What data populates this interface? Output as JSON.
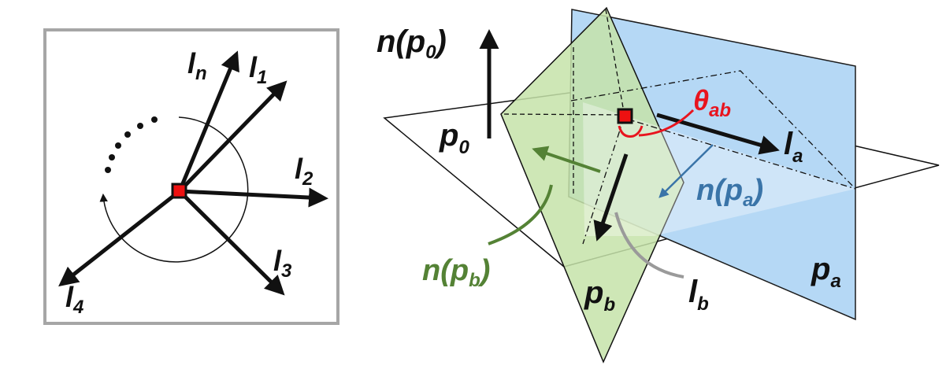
{
  "colors": {
    "frame": "#a6a6a6",
    "ink": "#111111",
    "marker": "#ee1111",
    "angle": "#e8141e",
    "plane_a_fill": "#b5d8f5",
    "plane_a_edge": "#1c1c1c",
    "plane_b_fill": "#c6e3a9",
    "normal_a": "#3a74a8",
    "normal_b": "#548235",
    "lb_leader": "#9a9a9a"
  },
  "left_panel": {
    "lines": [
      {
        "id": "ln",
        "base": "l",
        "sub": "n"
      },
      {
        "id": "l1",
        "base": "l",
        "sub": "1"
      },
      {
        "id": "l2",
        "base": "l",
        "sub": "2"
      },
      {
        "id": "l3",
        "base": "l",
        "sub": "3"
      },
      {
        "id": "l4",
        "base": "l",
        "sub": "4"
      }
    ],
    "ellipsis": "......"
  },
  "right_panel": {
    "normal_p0": {
      "prefix": "n(p",
      "sub": "0",
      "suffix": ")"
    },
    "plane_p0": {
      "base": "p",
      "sub": "0"
    },
    "plane_pa": {
      "base": "p",
      "sub": "a"
    },
    "plane_pb": {
      "base": "p",
      "sub": "b"
    },
    "line_la": {
      "base": "l",
      "sub": "a"
    },
    "line_lb": {
      "base": "l",
      "sub": "b"
    },
    "angle": {
      "base": "θ",
      "sub": "ab"
    },
    "normal_pa": {
      "prefix": "n(p",
      "sub": "a",
      "suffix": ")"
    },
    "normal_pb": {
      "prefix": "n(p",
      "sub": "b",
      "suffix": ")"
    }
  }
}
